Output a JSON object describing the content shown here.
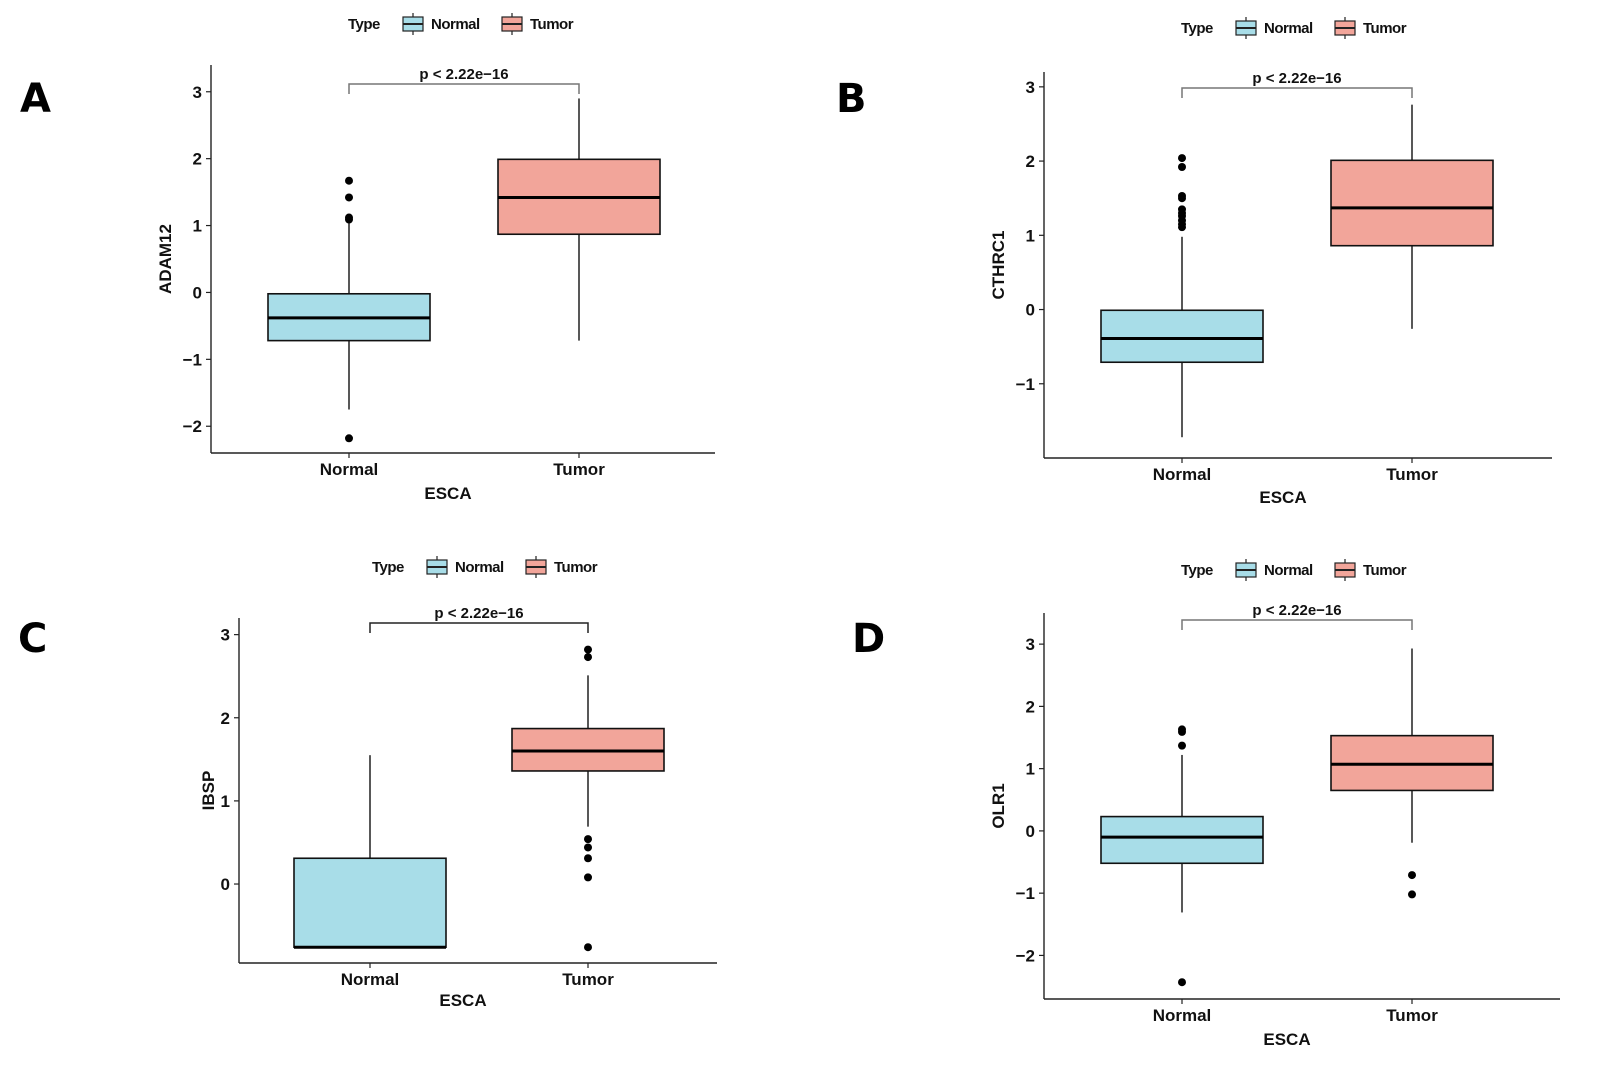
{
  "figure": {
    "legend": {
      "title": "Type",
      "entries": [
        {
          "label": "Normal",
          "color": "#A8DDE8"
        },
        {
          "label": "Tumor",
          "color": "#F2A59A"
        }
      ]
    }
  },
  "chart_data": [
    {
      "type": "box",
      "panel": "A",
      "title": "",
      "xlabel": "ESCA",
      "ylabel": "ADAM12",
      "categories": [
        "Normal",
        "Tumor"
      ],
      "ylim": [
        -2.4,
        3.4
      ],
      "yticks": [
        -2,
        -1,
        0,
        1,
        2,
        3
      ],
      "annotation": "p < 2.22e−16",
      "legend": "top",
      "series": [
        {
          "name": "Normal",
          "color": "#A8DDE8",
          "q1": -0.72,
          "median": -0.38,
          "q3": -0.02,
          "whisker_low": -1.75,
          "whisker_high": 1.05,
          "outliers": [
            1.67,
            1.42,
            1.12,
            1.09,
            -2.18
          ]
        },
        {
          "name": "Tumor",
          "color": "#F2A59A",
          "q1": 0.87,
          "median": 1.42,
          "q3": 1.99,
          "whisker_low": -0.72,
          "whisker_high": 2.9,
          "outliers": []
        }
      ]
    },
    {
      "type": "box",
      "panel": "B",
      "title": "",
      "xlabel": "ESCA",
      "ylabel": "CTHRC1",
      "categories": [
        "Normal",
        "Tumor"
      ],
      "ylim": [
        -2.0,
        3.2
      ],
      "yticks": [
        -1,
        0,
        1,
        2,
        3
      ],
      "annotation": "p < 2.22e−16",
      "legend": "top",
      "series": [
        {
          "name": "Normal",
          "color": "#A8DDE8",
          "q1": -0.71,
          "median": -0.39,
          "q3": -0.01,
          "whisker_low": -1.72,
          "whisker_high": 0.98,
          "outliers": [
            2.04,
            1.92,
            1.53,
            1.5,
            1.35,
            1.3,
            1.26,
            1.2,
            1.15,
            1.11
          ]
        },
        {
          "name": "Tumor",
          "color": "#F2A59A",
          "q1": 0.86,
          "median": 1.37,
          "q3": 2.01,
          "whisker_low": -0.26,
          "whisker_high": 2.76,
          "outliers": []
        }
      ]
    },
    {
      "type": "box",
      "panel": "C",
      "title": "",
      "xlabel": "ESCA",
      "ylabel": "IBSP",
      "categories": [
        "Normal",
        "Tumor"
      ],
      "ylim": [
        -0.95,
        3.2
      ],
      "yticks": [
        0,
        1,
        2,
        3
      ],
      "annotation": "p < 2.22e−16",
      "legend": "top",
      "series": [
        {
          "name": "Normal",
          "color": "#A8DDE8",
          "q1": -0.76,
          "median": -0.76,
          "q3": 0.31,
          "whisker_low": -0.76,
          "whisker_high": 1.55,
          "outliers": []
        },
        {
          "name": "Tumor",
          "color": "#F2A59A",
          "q1": 1.36,
          "median": 1.6,
          "q3": 1.87,
          "whisker_low": 0.69,
          "whisker_high": 2.51,
          "outliers": [
            2.82,
            2.73,
            0.54,
            0.44,
            0.31,
            0.08,
            -0.76
          ]
        }
      ]
    },
    {
      "type": "box",
      "panel": "D",
      "title": "",
      "xlabel": "ESCA",
      "ylabel": "OLR1",
      "categories": [
        "Normal",
        "Tumor"
      ],
      "ylim": [
        -2.7,
        3.5
      ],
      "yticks": [
        -2,
        -1,
        0,
        1,
        2,
        3
      ],
      "annotation": "p < 2.22e−16",
      "legend": "top",
      "series": [
        {
          "name": "Normal",
          "color": "#A8DDE8",
          "q1": -0.52,
          "median": -0.1,
          "q3": 0.23,
          "whisker_low": -1.31,
          "whisker_high": 1.22,
          "outliers": [
            1.63,
            1.59,
            1.37,
            -2.43
          ]
        },
        {
          "name": "Tumor",
          "color": "#F2A59A",
          "q1": 0.65,
          "median": 1.07,
          "q3": 1.53,
          "whisker_low": -0.19,
          "whisker_high": 2.93,
          "outliers": [
            -0.71,
            -1.02
          ]
        }
      ]
    }
  ]
}
